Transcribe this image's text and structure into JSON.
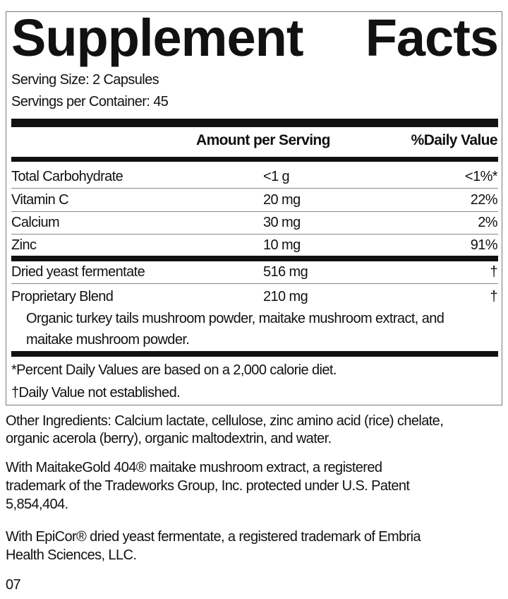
{
  "title": [
    "Supplement",
    "Facts"
  ],
  "serving_size": "Serving Size: 2 Capsules",
  "servings_per_container": "Servings per Container: 45",
  "headers": {
    "amount": "Amount per Serving",
    "dv": "%Daily Value"
  },
  "rows": [
    {
      "name": "Total Carbohydrate",
      "amount": "<1 g",
      "dv": "<1%*"
    },
    {
      "name": "Vitamin C",
      "amount": "20 mg",
      "dv": "22%"
    },
    {
      "name": "Calcium",
      "amount": "30 mg",
      "dv": "2%"
    },
    {
      "name": "Zinc",
      "amount": "10 mg",
      "dv": "91%"
    },
    {
      "name": "Dried yeast fermentate",
      "amount": "516 mg",
      "dv": "†"
    },
    {
      "name": "Proprietary Blend",
      "amount": "210 mg",
      "dv": "†"
    }
  ],
  "blend_ingredients": [
    "Organic turkey tails mushroom powder, maitake mushroom extract, and",
    "maitake mushroom powder."
  ],
  "footnotes": [
    "*Percent Daily Values are based on a 2,000 calorie diet.",
    "†Daily Value not established."
  ],
  "other_ingredients": [
    "Other Ingredients: Calcium lactate, cellulose, zinc amino acid (rice) chelate,",
    "organic acerola (berry), organic maltodextrin, and water."
  ],
  "maitake_note": [
    "With MaitakeGold 404® maitake mushroom extract, a registered",
    "trademark of the Tradeworks Group, Inc. protected under U.S. Patent",
    "5,854,404."
  ],
  "epicor_note": [
    "With EpiCor® dried yeast fermentate, a registered trademark of Embria",
    "Health Sciences, LLC."
  ],
  "code": "07"
}
